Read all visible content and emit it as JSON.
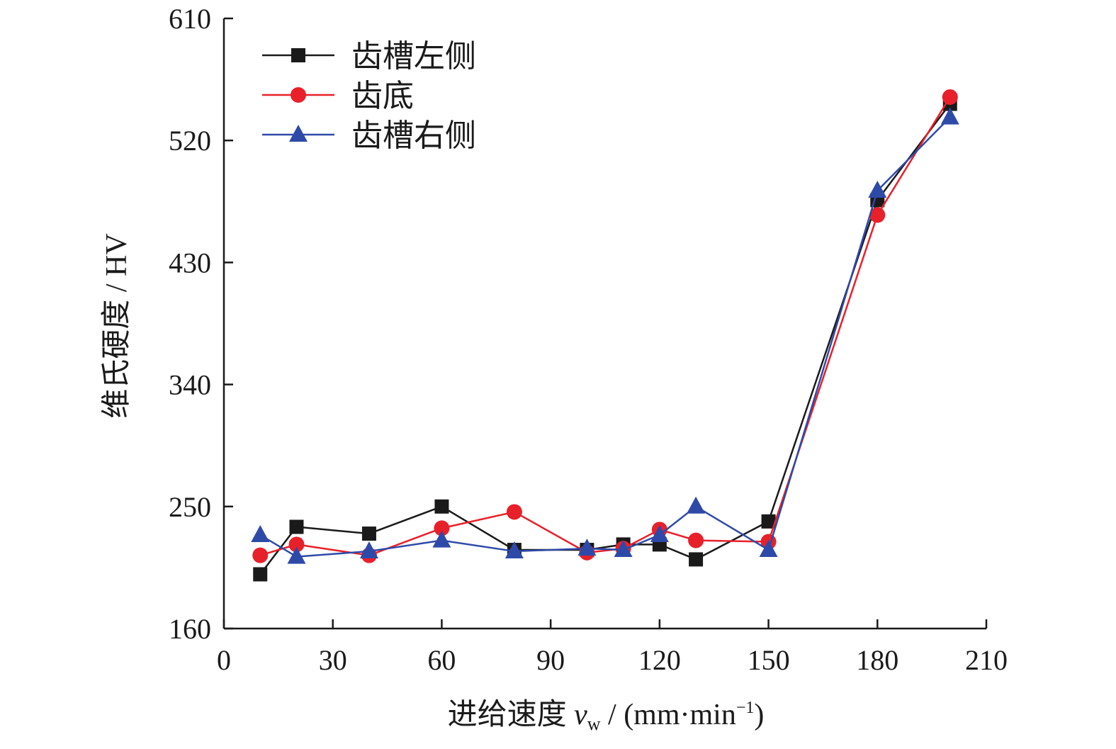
{
  "chart_data": {
    "type": "line",
    "xlabel": "进给速度",
    "xlabel_var": "v",
    "xlabel_sub": "w",
    "xlabel_unit_pre": " / (mm·min",
    "xlabel_unit_sup": "−1",
    "xlabel_unit_post": ")",
    "ylabel": "维氏硬度 / HV",
    "xlim": [
      0,
      210
    ],
    "ylim": [
      160,
      610
    ],
    "xticks": [
      0,
      30,
      60,
      90,
      120,
      150,
      180,
      210
    ],
    "yticks": [
      160,
      250,
      340,
      430,
      520,
      610
    ],
    "grid": false,
    "legend_position": "top-left",
    "x": [
      10,
      20,
      40,
      60,
      80,
      100,
      110,
      120,
      130,
      150,
      180,
      200
    ],
    "series": [
      {
        "name": "齿槽左侧",
        "color": "#1a1a1a",
        "marker": "square",
        "values": [
          200,
          235,
          230,
          250,
          218,
          218,
          222,
          222,
          211,
          239,
          476,
          547
        ]
      },
      {
        "name": "齿底",
        "color": "#e8202a",
        "marker": "circle",
        "values": [
          214,
          222,
          214,
          234,
          246,
          216,
          219,
          233,
          225,
          224,
          465,
          552
        ]
      },
      {
        "name": "齿槽右侧",
        "color": "#2e4aa8",
        "marker": "triangle",
        "values": [
          229,
          213,
          217,
          225,
          217,
          219,
          218,
          229,
          250,
          218,
          483,
          537
        ]
      }
    ]
  }
}
